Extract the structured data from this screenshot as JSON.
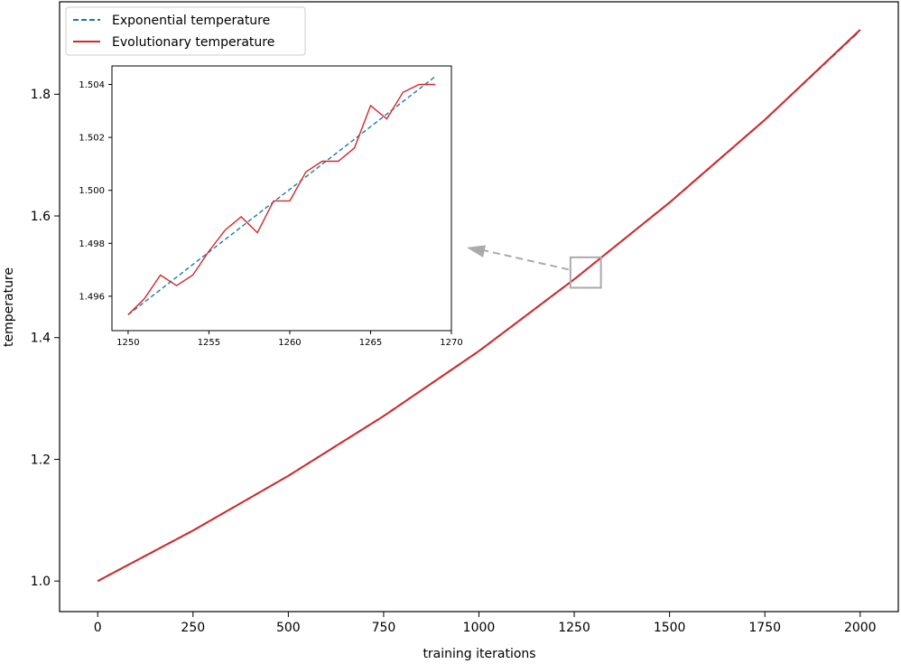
{
  "chart_data": [
    {
      "type": "line",
      "xlabel": "training iterations",
      "ylabel": "temperature",
      "xlim": [
        -100,
        2100
      ],
      "ylim": [
        0.9498,
        1.9519
      ],
      "xticks": [
        0,
        250,
        500,
        750,
        1000,
        1250,
        1500,
        1750,
        2000
      ],
      "yticks": [
        1.0,
        1.2,
        1.4,
        1.6,
        1.8
      ],
      "xtick_labels": [
        "0",
        "250",
        "500",
        "750",
        "1000",
        "1250",
        "1500",
        "1750",
        "2000"
      ],
      "ytick_labels": [
        "1.0",
        "1.2",
        "1.4",
        "1.6",
        "1.8"
      ],
      "legend": {
        "placement": "upper-left",
        "entries": [
          "Exponential temperature",
          "Evolutionary temperature"
        ]
      },
      "series": [
        {
          "name": "Exponential temperature",
          "color": "#1f77b4",
          "style": "dashed",
          "x": [
            0,
            250,
            500,
            750,
            1000,
            1250,
            1500,
            1750,
            2000
          ],
          "values": [
            1.0,
            1.083,
            1.173,
            1.271,
            1.378,
            1.496,
            1.622,
            1.758,
            1.905
          ]
        },
        {
          "name": "Evolutionary temperature",
          "color": "#d62728",
          "style": "solid",
          "x": [
            0,
            250,
            500,
            750,
            1000,
            1250,
            1500,
            1750,
            2000
          ],
          "values": [
            1.0,
            1.083,
            1.173,
            1.271,
            1.378,
            1.496,
            1.622,
            1.758,
            1.906
          ]
        }
      ],
      "zoom_box": {
        "x": [
          1240,
          1320
        ],
        "y": [
          1.482,
          1.532
        ],
        "color": "#aaaaaa"
      }
    },
    {
      "type": "line",
      "xlim": [
        1249,
        1270
      ],
      "ylim": [
        1.4947,
        1.5047
      ],
      "xticks": [
        1250,
        1255,
        1260,
        1265,
        1270
      ],
      "yticks": [
        1.496,
        1.498,
        1.5,
        1.502,
        1.504
      ],
      "xtick_labels": [
        "1250",
        "1255",
        "1260",
        "1265",
        "1270"
      ],
      "ytick_labels": [
        "1.496",
        "1.498",
        "1.500",
        "1.502",
        "1.504"
      ],
      "series": [
        {
          "name": "Exponential temperature",
          "color": "#1f77b4",
          "style": "dashed",
          "x": [
            1250,
            1269
          ],
          "values": [
            1.4953,
            1.5043
          ]
        },
        {
          "name": "Evolutionary temperature",
          "color": "#d62728",
          "style": "solid",
          "x": [
            1250,
            1251,
            1252,
            1253,
            1254,
            1255,
            1256,
            1257,
            1258,
            1259,
            1260,
            1261,
            1262,
            1263,
            1264,
            1265,
            1266,
            1267,
            1268,
            1269
          ],
          "values": [
            1.4953,
            1.4959,
            1.4968,
            1.4964,
            1.4968,
            1.4977,
            1.4985,
            1.499,
            1.4984,
            1.4996,
            1.4996,
            1.5007,
            1.5011,
            1.5011,
            1.5016,
            1.5032,
            1.5027,
            1.5037,
            1.504,
            1.504
          ]
        }
      ]
    }
  ]
}
